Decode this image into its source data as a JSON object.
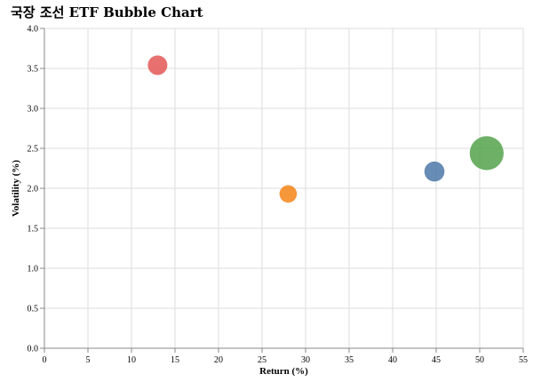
{
  "chart_data": {
    "type": "scatter",
    "title": "국장 조선 ETF Bubble Chart",
    "xlabel": "Return (%)",
    "ylabel": "Volatility (%)",
    "xlim": [
      0,
      55
    ],
    "ylim": [
      0,
      4.0
    ],
    "x_ticks": [
      "0",
      "5",
      "10",
      "15",
      "20",
      "25",
      "30",
      "35",
      "40",
      "45",
      "50",
      "55"
    ],
    "y_ticks": [
      "0.0",
      "0.5",
      "1.0",
      "1.5",
      "2.0",
      "2.5",
      "3.0",
      "3.5",
      "4.0"
    ],
    "grid": true,
    "legend": "none",
    "points": [
      {
        "x": 13.0,
        "y": 3.54,
        "size": 1.0,
        "color": "#e45756"
      },
      {
        "x": 28.0,
        "y": 1.93,
        "size": 0.8,
        "color": "#f58518"
      },
      {
        "x": 44.8,
        "y": 2.21,
        "size": 1.05,
        "color": "#4c78a8"
      },
      {
        "x": 50.8,
        "y": 2.44,
        "size": 3.0,
        "color": "#54a24b"
      }
    ]
  }
}
